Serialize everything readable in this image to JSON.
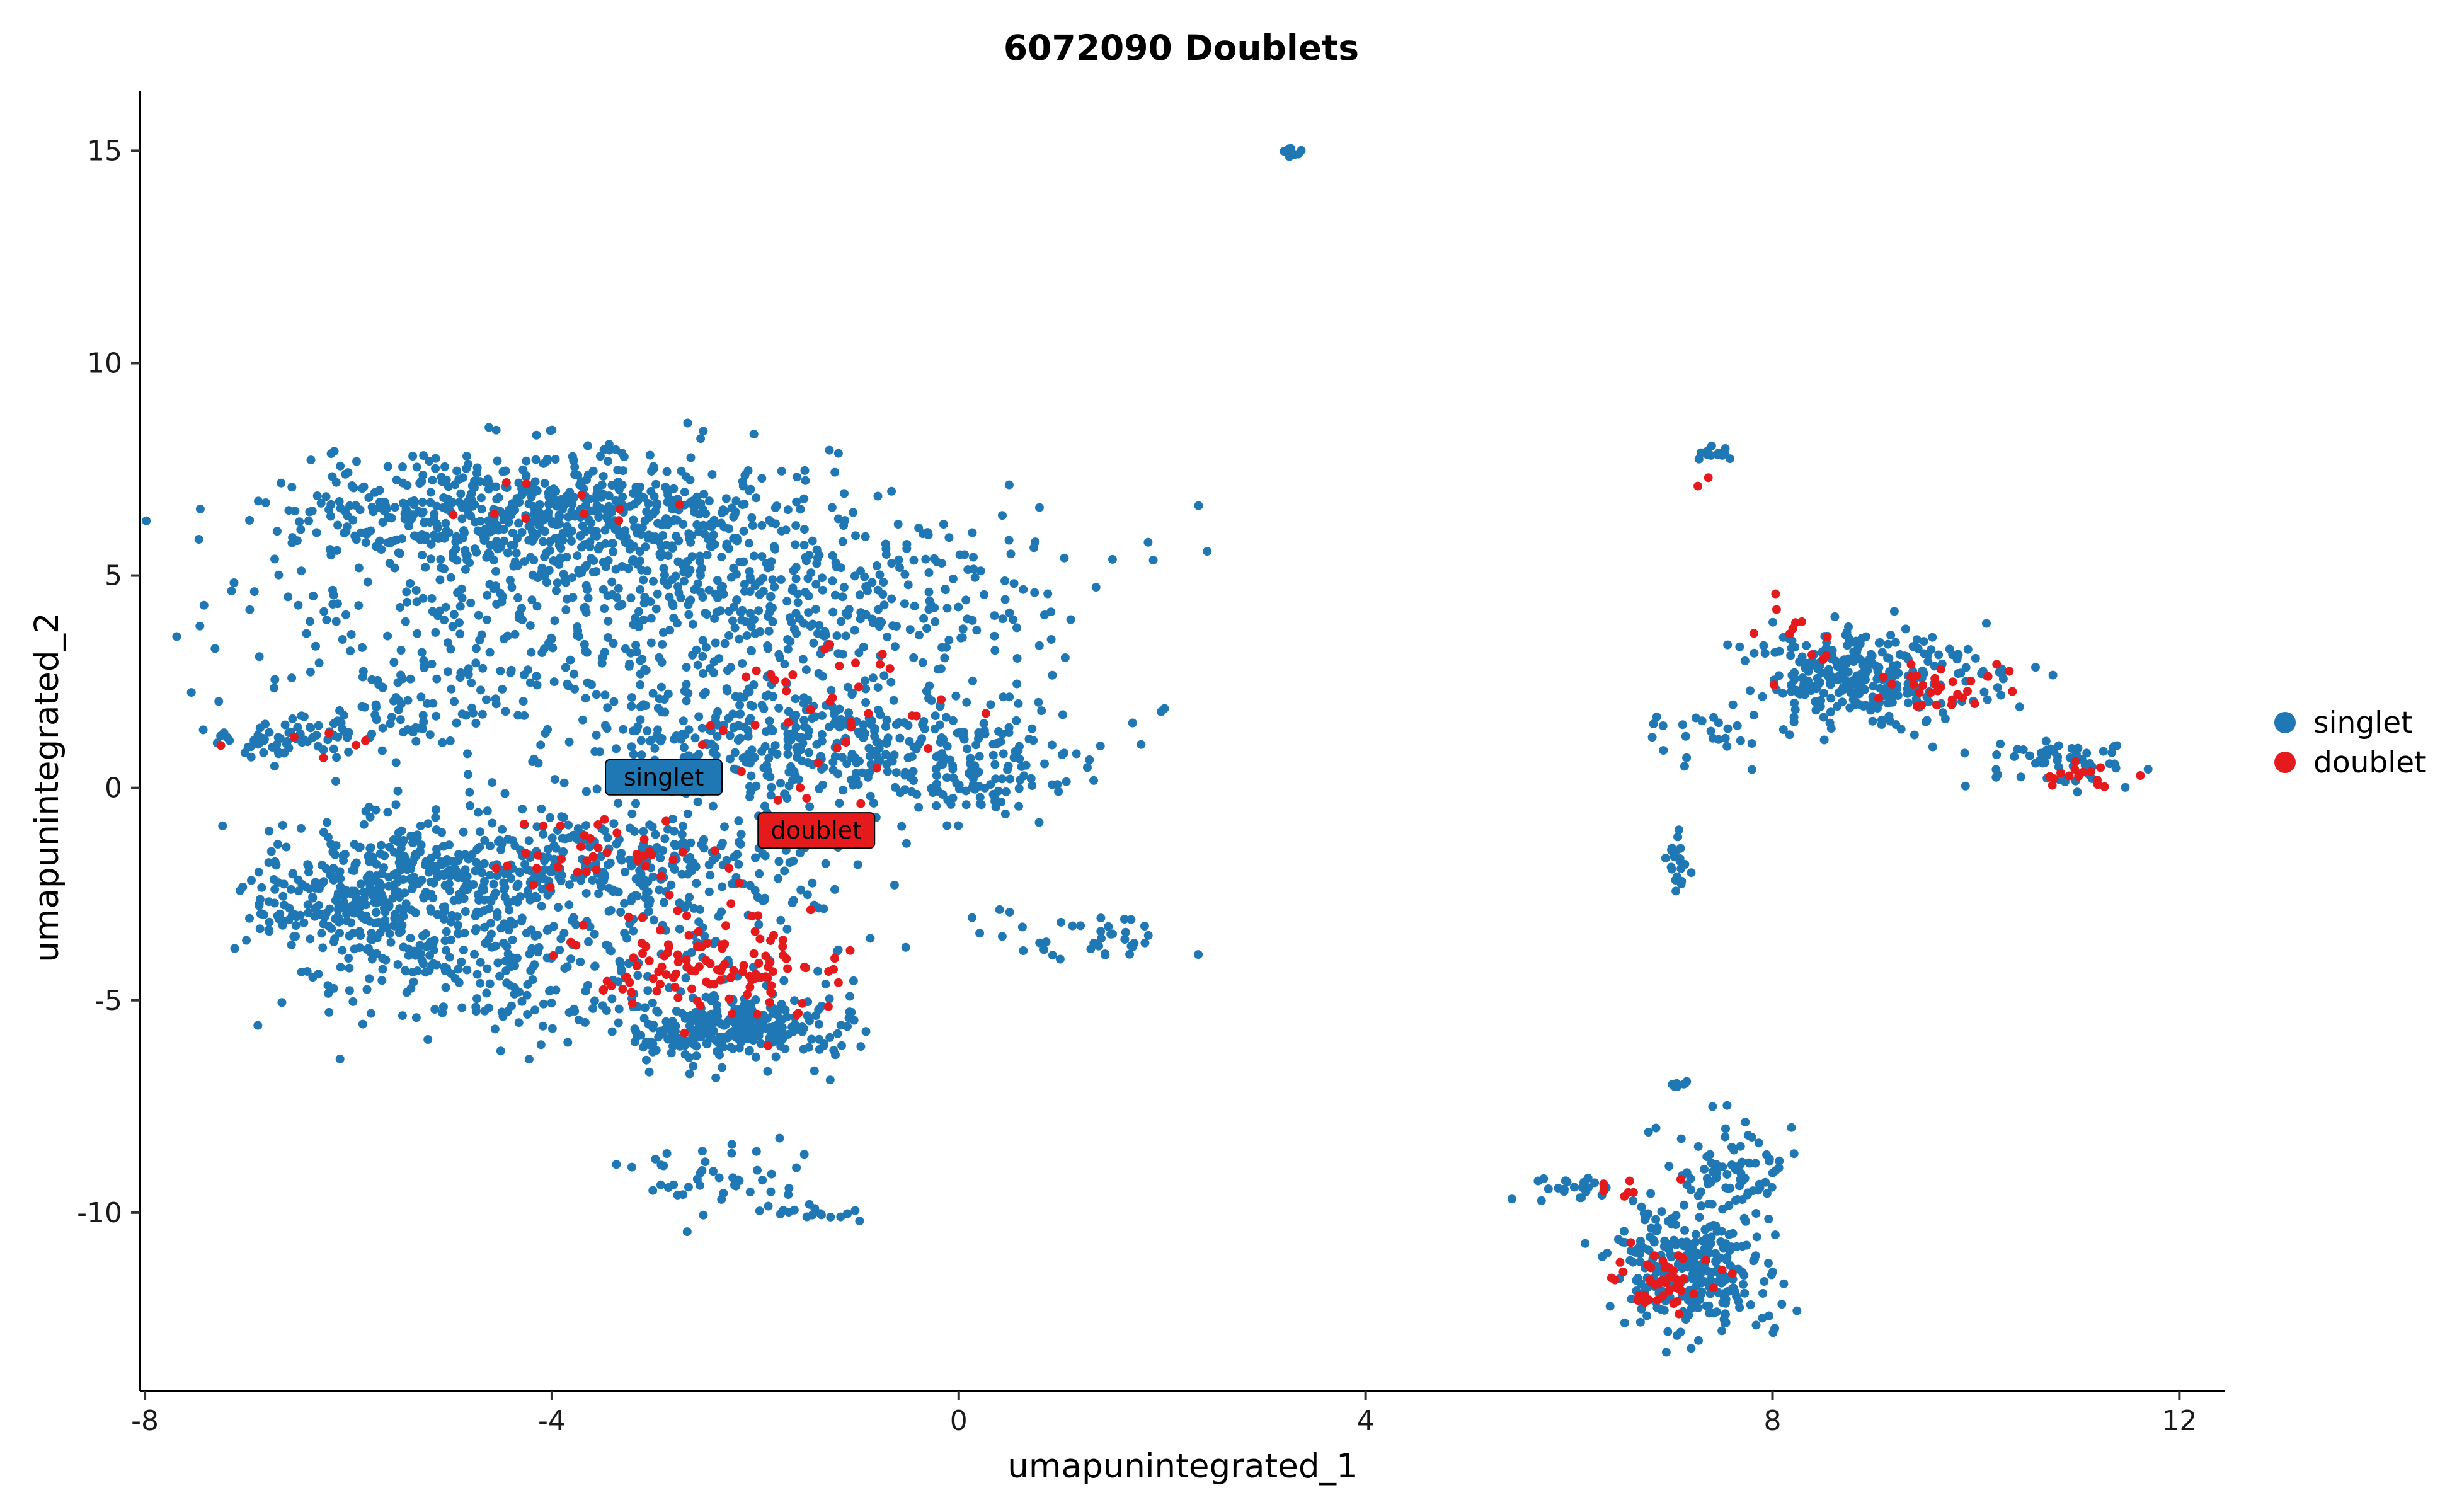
{
  "chart_data": {
    "type": "scatter",
    "title": "6072090 Doublets",
    "xlabel": "umapunintegrated_1",
    "ylabel": "umapunintegrated_2",
    "xlim": [
      -8.05,
      12.45
    ],
    "ylim": [
      -14.2,
      16.4
    ],
    "x_ticks": [
      -8,
      -4,
      0,
      4,
      8,
      12
    ],
    "x_tick_labels": [
      "-8",
      "-4",
      "0",
      "4",
      "8",
      "12"
    ],
    "y_ticks": [
      -10,
      -5,
      0,
      5,
      10,
      15
    ],
    "y_tick_labels": [
      "-10",
      "-5",
      "0",
      "5",
      "10",
      "15"
    ],
    "grid": false,
    "legend_position": "right",
    "series": [
      {
        "name": "singlet",
        "color": "#1f77b4",
        "clusters": [
          {
            "cx": -4.0,
            "cy": 6.4,
            "sx": 1.3,
            "sy": 0.75,
            "n": 700
          },
          {
            "cx": -3.2,
            "cy": 3.8,
            "sx": 1.8,
            "sy": 1.3,
            "n": 420
          },
          {
            "cx": -1.2,
            "cy": 4.6,
            "sx": 1.2,
            "sy": 0.9,
            "n": 200
          },
          {
            "cx": -1.3,
            "cy": 1.0,
            "sx": 1.2,
            "sy": 0.75,
            "n": 430
          },
          {
            "cx": 0.1,
            "cy": 0.1,
            "sx": 0.35,
            "sy": 0.45,
            "n": 60
          },
          {
            "cx": -5.8,
            "cy": -2.6,
            "sx": 0.55,
            "sy": 0.7,
            "n": 320
          },
          {
            "cx": -4.6,
            "cy": -1.7,
            "sx": 0.9,
            "sy": 0.7,
            "n": 220
          },
          {
            "cx": -4.7,
            "cy": -4.2,
            "sx": 0.75,
            "sy": 0.95,
            "n": 170
          },
          {
            "cx": -3.0,
            "cy": -1.9,
            "sx": 0.9,
            "sy": 0.6,
            "n": 200
          },
          {
            "cx": -2.2,
            "cy": -5.7,
            "sx": 0.55,
            "sy": 0.4,
            "n": 260
          },
          {
            "cx": -2.9,
            "cy": -4.0,
            "sx": 0.75,
            "sy": 0.9,
            "n": 120
          },
          {
            "cx": -6.6,
            "cy": 1.1,
            "sx": 0.4,
            "sy": 0.2,
            "n": 60
          },
          {
            "cx": -5.5,
            "cy": 1.8,
            "sx": 0.6,
            "sy": 0.6,
            "n": 70
          },
          {
            "cx": -2.5,
            "cy": -9.3,
            "sx": 0.45,
            "sy": 0.45,
            "n": 45
          },
          {
            "cx": -1.4,
            "cy": -10.0,
            "sx": 0.3,
            "sy": 0.12,
            "n": 15
          },
          {
            "cx": 1.3,
            "cy": -3.5,
            "sx": 0.5,
            "sy": 0.35,
            "n": 40
          },
          {
            "cx": 3.3,
            "cy": 14.95,
            "sx": 0.04,
            "sy": 0.05,
            "n": 8
          },
          {
            "cx": 7.4,
            "cy": 7.85,
            "sx": 0.15,
            "sy": 0.08,
            "n": 14
          },
          {
            "cx": 8.9,
            "cy": 2.6,
            "sx": 0.55,
            "sy": 0.55,
            "n": 320
          },
          {
            "cx": 10.8,
            "cy": 0.6,
            "sx": 0.45,
            "sy": 0.3,
            "n": 60
          },
          {
            "cx": 7.5,
            "cy": 1.3,
            "sx": 0.35,
            "sy": 0.4,
            "n": 25
          },
          {
            "cx": 7.05,
            "cy": -1.6,
            "sx": 0.06,
            "sy": 0.45,
            "n": 22
          },
          {
            "cx": 7.2,
            "cy": -11.4,
            "sx": 0.4,
            "sy": 0.7,
            "n": 270
          },
          {
            "cx": 7.6,
            "cy": -9.1,
            "sx": 0.3,
            "sy": 0.6,
            "n": 80
          },
          {
            "cx": 6.0,
            "cy": -9.4,
            "sx": 0.3,
            "sy": 0.15,
            "n": 22
          },
          {
            "cx": 7.1,
            "cy": -7.0,
            "sx": 0.06,
            "sy": 0.05,
            "n": 8
          }
        ]
      },
      {
        "name": "doublet",
        "color": "#e41a1c",
        "clusters": [
          {
            "cx": -2.4,
            "cy": -4.3,
            "sx": 0.6,
            "sy": 0.65,
            "n": 120
          },
          {
            "cx": -3.5,
            "cy": -1.6,
            "sx": 0.6,
            "sy": 0.4,
            "n": 40
          },
          {
            "cx": -1.3,
            "cy": 1.8,
            "sx": 0.7,
            "sy": 1.1,
            "n": 40
          },
          {
            "cx": -4.0,
            "cy": 7.0,
            "sx": 1.0,
            "sy": 0.4,
            "n": 10
          },
          {
            "cx": -6.6,
            "cy": 1.1,
            "sx": 0.5,
            "sy": 0.2,
            "n": 6
          },
          {
            "cx": 6.9,
            "cy": -11.6,
            "sx": 0.25,
            "sy": 0.3,
            "n": 45
          },
          {
            "cx": 9.5,
            "cy": 2.4,
            "sx": 0.4,
            "sy": 0.3,
            "n": 30
          },
          {
            "cx": 11.0,
            "cy": 0.3,
            "sx": 0.2,
            "sy": 0.15,
            "n": 15
          },
          {
            "cx": 8.3,
            "cy": 3.4,
            "sx": 0.3,
            "sy": 0.6,
            "n": 12
          },
          {
            "cx": 6.6,
            "cy": -9.4,
            "sx": 0.3,
            "sy": 0.2,
            "n": 8
          },
          {
            "cx": 7.3,
            "cy": 7.3,
            "sx": 0.1,
            "sy": 0.2,
            "n": 2
          }
        ]
      }
    ],
    "annotations": [
      {
        "text": "singlet",
        "x": -2.9,
        "y": 0.25,
        "fill": "#1f77b4"
      },
      {
        "text": "doublet",
        "x": -1.4,
        "y": -1.0,
        "fill": "#e41a1c"
      }
    ],
    "legend": [
      {
        "label": "singlet",
        "color": "#1f77b4"
      },
      {
        "label": "doublet",
        "color": "#e41a1c"
      }
    ]
  }
}
